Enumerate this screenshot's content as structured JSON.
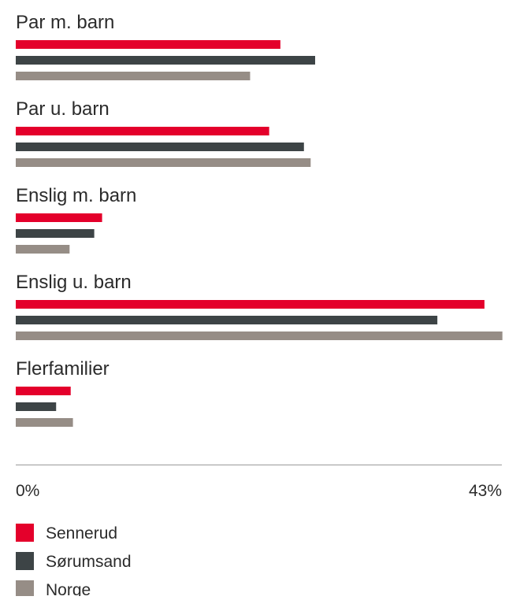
{
  "chart_data": {
    "type": "bar",
    "orientation": "horizontal",
    "categories": [
      "Par m. barn",
      "Par u. barn",
      "Enslig m. barn",
      "Enslig u. barn",
      "Flerfamilier"
    ],
    "series": [
      {
        "name": "Sennerud",
        "values": [
          23.6,
          22.6,
          7.7,
          41.8,
          4.9
        ]
      },
      {
        "name": "Sørumsand",
        "values": [
          26.7,
          25.7,
          7.0,
          37.6,
          3.6
        ]
      },
      {
        "name": "Norge",
        "values": [
          20.9,
          26.3,
          4.8,
          43.4,
          5.1
        ]
      }
    ],
    "xlim": [
      0,
      43
    ],
    "tick_labels": [
      "0%",
      "43%"
    ],
    "legend_position": "bottom-left",
    "grid": false,
    "colors": [
      "#e4002b",
      "#3d4446",
      "#968d86"
    ]
  }
}
